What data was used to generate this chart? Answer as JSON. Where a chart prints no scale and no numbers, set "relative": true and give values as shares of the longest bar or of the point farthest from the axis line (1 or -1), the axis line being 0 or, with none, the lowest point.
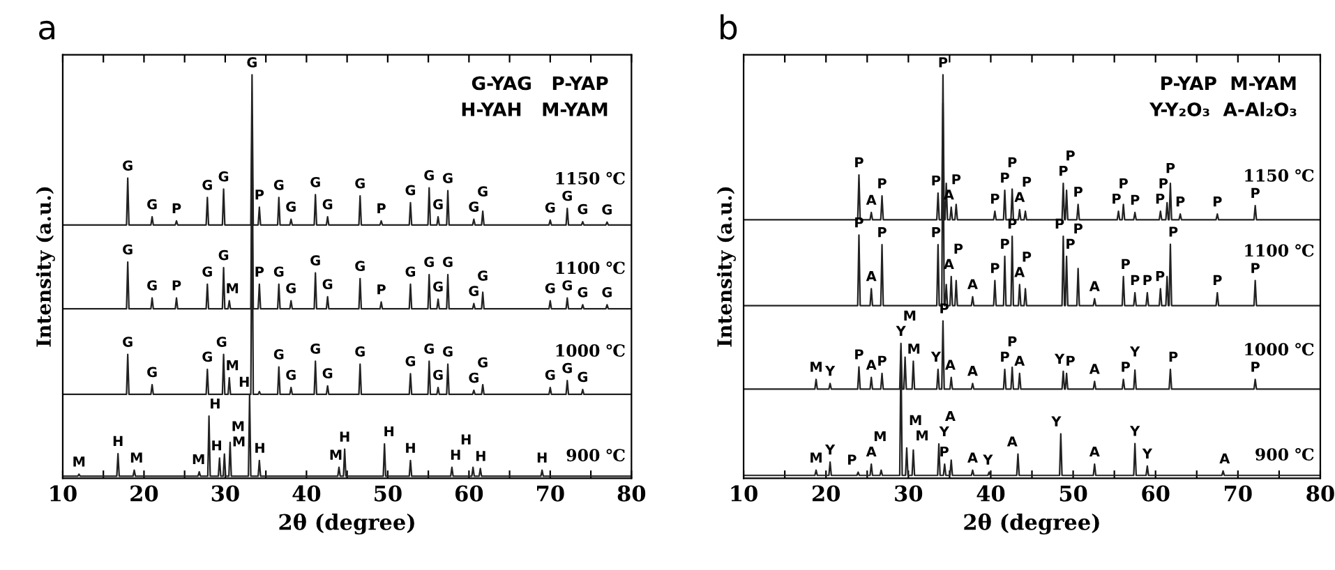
{
  "chart_data": [
    {
      "type": "line",
      "title": "a",
      "xlabel": "2θ (degree)",
      "ylabel": "Intensity (a.u.)",
      "relative": true,
      "xlim": [
        10,
        80
      ],
      "xticks": [
        10,
        {
          "value": 15,
          "label": null
        },
        20,
        {
          "value": 25,
          "label": null
        },
        30,
        {
          "value": 35,
          "label": null
        },
        40,
        {
          "value": 45,
          "label": null
        },
        50,
        {
          "value": 55,
          "label": null
        },
        60,
        {
          "value": 65,
          "label": null
        },
        70,
        {
          "value": 75,
          "label": null
        },
        80
      ],
      "x": [
        10,
        17.85,
        18,
        18.15,
        20.85,
        21,
        21.15,
        23.85,
        24,
        24.15,
        27.65,
        27.8,
        27.95,
        29.65,
        29.8,
        29.95,
        30.35,
        30.5,
        30.65,
        33.15,
        33.3,
        33.45,
        34.05,
        34.2,
        34.35,
        36.45,
        36.6,
        36.75,
        37.95,
        38.1,
        38.25,
        40.95,
        41.1,
        41.25,
        42.45,
        42.6,
        42.75,
        46.45,
        46.6,
        46.75,
        49.05,
        49.2,
        49.35,
        52.65,
        52.8,
        52.95,
        54.95,
        55.1,
        55.25,
        56.05,
        56.2,
        56.35,
        57.25,
        57.4,
        57.55,
        60.45,
        60.6,
        60.75,
        61.55,
        61.7,
        61.85,
        69.85,
        70,
        70.15,
        71.95,
        72.1,
        72.25,
        73.85,
        74,
        74.15,
        76.85,
        77,
        77.15,
        80
      ],
      "series": [
        {
          "name": "1150 ℃",
          "color": "#222222",
          "values": [
            0.628,
            0.628,
            0.744,
            0.628,
            0.628,
            0.648,
            0.628,
            0.628,
            0.638,
            0.628,
            0.628,
            0.696,
            0.628,
            0.628,
            0.717,
            0.628,
            0.628,
            0.628,
            0.628,
            0.628,
            1,
            0.628,
            0.628,
            0.672,
            0.628,
            0.628,
            0.696,
            0.628,
            0.628,
            0.642,
            0.628,
            0.628,
            0.703,
            0.628,
            0.628,
            0.648,
            0.628,
            0.628,
            0.7,
            0.628,
            0.628,
            0.638,
            0.628,
            0.628,
            0.683,
            0.628,
            0.628,
            0.72,
            0.628,
            0.628,
            0.648,
            0.628,
            0.628,
            0.713,
            0.628,
            0.628,
            0.642,
            0.628,
            0.628,
            0.662,
            0.628,
            0.628,
            0.64,
            0.628,
            0.628,
            0.669,
            0.628,
            0.628,
            0.636,
            0.628,
            0.628,
            0.635,
            0.628,
            0.628
          ]
        },
        {
          "name": "1100 ℃",
          "color": "#222222",
          "values": [
            0.42,
            0.42,
            0.536,
            0.42,
            0.42,
            0.447,
            0.42,
            0.42,
            0.447,
            0.42,
            0.42,
            0.481,
            0.42,
            0.42,
            0.522,
            0.42,
            0.42,
            0.44,
            0.42,
            0.42,
            0.9,
            0.42,
            0.42,
            0.481,
            0.42,
            0.42,
            0.481,
            0.42,
            0.42,
            0.44,
            0.42,
            0.42,
            0.509,
            0.42,
            0.42,
            0.45,
            0.42,
            0.42,
            0.495,
            0.42,
            0.42,
            0.437,
            0.42,
            0.42,
            0.481,
            0.42,
            0.42,
            0.505,
            0.42,
            0.42,
            0.444,
            0.42,
            0.42,
            0.505,
            0.42,
            0.42,
            0.433,
            0.42,
            0.42,
            0.461,
            0.42,
            0.42,
            0.44,
            0.42,
            0.42,
            0.447,
            0.42,
            0.42,
            0.43,
            0.42,
            0.42,
            0.43,
            0.42,
            0.42
          ]
        },
        {
          "name": "1000 ℃",
          "color": "#222222",
          "values": [
            0.208,
            0.208,
            0.307,
            0.208,
            0.208,
            0.232,
            0.208,
            0.208,
            0.208,
            0.208,
            0.208,
            0.27,
            0.208,
            0.208,
            0.307,
            0.208,
            0.208,
            0.249,
            0.208,
            0.208,
            0.76,
            0.208,
            0.208,
            0.215,
            0.208,
            0.208,
            0.276,
            0.208,
            0.208,
            0.225,
            0.208,
            0.208,
            0.29,
            0.208,
            0.208,
            0.229,
            0.208,
            0.208,
            0.283,
            0.208,
            0.208,
            0.208,
            0.208,
            0.208,
            0.259,
            0.208,
            0.208,
            0.29,
            0.208,
            0.208,
            0.225,
            0.208,
            0.208,
            0.283,
            0.208,
            0.208,
            0.218,
            0.208,
            0.208,
            0.232,
            0.208,
            0.208,
            0.225,
            0.208,
            0.208,
            0.242,
            0.208,
            0.208,
            0.22,
            0.208,
            0.208,
            0.208,
            0.208,
            0.208
          ]
        },
        {
          "name": "900 ℃",
          "color": "#222222",
          "x": [
            10,
            11.85,
            12,
            12.15,
            16.65,
            16.8,
            16.95,
            18.65,
            18.8,
            18.95,
            26.65,
            26.8,
            26.95,
            27.85,
            28,
            28.15,
            29.15,
            29.3,
            29.45,
            29.75,
            29.9,
            30.05,
            30.45,
            30.6,
            30.75,
            32.85,
            33,
            33.15,
            34.05,
            34.2,
            34.35,
            43.85,
            44,
            44.15,
            44.55,
            44.7,
            44.85,
            49.45,
            49.6,
            49.75,
            52.65,
            52.8,
            52.95,
            57.75,
            57.9,
            58.05,
            60.35,
            60.5,
            60.65,
            61.25,
            61.4,
            61.55,
            68.85,
            69,
            69.15,
            80
          ],
          "values": [
            0.005,
            0.005,
            0.01,
            0.005,
            0.005,
            0.061,
            0.005,
            0.005,
            0.02,
            0.005,
            0.005,
            0.016,
            0.005,
            0.005,
            0.154,
            0.005,
            0.005,
            0.05,
            0.005,
            0.005,
            0.06,
            0.005,
            0.005,
            0.089,
            0.005,
            0.005,
            0.208,
            0.005,
            0.005,
            0.044,
            0.005,
            0.005,
            0.027,
            0.005,
            0.005,
            0.072,
            0.005,
            0.005,
            0.085,
            0.005,
            0.005,
            0.044,
            0.005,
            0.005,
            0.027,
            0.005,
            0.005,
            0.027,
            0.005,
            0.005,
            0.024,
            0.005,
            0.005,
            0.02,
            0.005,
            0.005
          ]
        }
      ],
      "annotations": [
        "G-YAG   P-YAP\nH-YAH   M-YAM",
        {
          "text": "G",
          "x": 18,
          "y": 0.744
        },
        {
          "text": "G",
          "x": 21,
          "y": 0.648
        },
        {
          "text": "P",
          "x": 24,
          "y": 0.638
        },
        {
          "text": "G",
          "x": 27.8,
          "y": 0.696
        },
        {
          "text": "G",
          "x": 29.8,
          "y": 0.717
        },
        {
          "text": "G",
          "x": 33.3,
          "y": 1
        },
        {
          "text": "P",
          "x": 34.2,
          "y": 0.672
        },
        {
          "text": "G",
          "x": 36.6,
          "y": 0.696
        },
        {
          "text": "G",
          "x": 38.1,
          "y": 0.642
        },
        {
          "text": "G",
          "x": 41.1,
          "y": 0.703
        },
        {
          "text": "G",
          "x": 42.6,
          "y": 0.648
        },
        {
          "text": "G",
          "x": 46.6,
          "y": 0.7
        },
        {
          "text": "P",
          "x": 49.2,
          "y": 0.638
        },
        {
          "text": "G",
          "x": 52.8,
          "y": 0.683
        },
        {
          "text": "G",
          "x": 55.1,
          "y": 0.72
        },
        {
          "text": "G",
          "x": 56.2,
          "y": 0.648
        },
        {
          "text": "G",
          "x": 57.4,
          "y": 0.713
        },
        {
          "text": "G",
          "x": 60.6,
          "y": 0.642
        },
        {
          "text": "G",
          "x": 61.7,
          "y": 0.662
        },
        {
          "text": "G",
          "x": 70,
          "y": 0.64
        },
        {
          "text": "G",
          "x": 72.1,
          "y": 0.669
        },
        {
          "text": "G",
          "x": 74,
          "y": 0.636
        },
        {
          "text": "G",
          "x": 77,
          "y": 0.635
        },
        {
          "text": "G",
          "x": 18,
          "y": 0.536
        },
        {
          "text": "G",
          "x": 21,
          "y": 0.447
        },
        {
          "text": "P",
          "x": 24,
          "y": 0.447
        },
        {
          "text": "G",
          "x": 27.8,
          "y": 0.481
        },
        {
          "text": "G",
          "x": 29.8,
          "y": 0.522
        },
        {
          "text": "M",
          "x": 30.5,
          "y": 0.44
        },
        {
          "text": "P",
          "x": 34.2,
          "y": 0.481
        },
        {
          "text": "G",
          "x": 36.6,
          "y": 0.481
        },
        {
          "text": "G",
          "x": 38.1,
          "y": 0.44
        },
        {
          "text": "G",
          "x": 41.1,
          "y": 0.509
        },
        {
          "text": "G",
          "x": 42.6,
          "y": 0.45
        },
        {
          "text": "G",
          "x": 46.6,
          "y": 0.495
        },
        {
          "text": "P",
          "x": 49.2,
          "y": 0.437
        },
        {
          "text": "G",
          "x": 52.8,
          "y": 0.481
        },
        {
          "text": "G",
          "x": 55.1,
          "y": 0.505
        },
        {
          "text": "G",
          "x": 56.2,
          "y": 0.444
        },
        {
          "text": "G",
          "x": 57.4,
          "y": 0.505
        },
        {
          "text": "G",
          "x": 60.6,
          "y": 0.433
        },
        {
          "text": "G",
          "x": 61.7,
          "y": 0.461
        },
        {
          "text": "G",
          "x": 70,
          "y": 0.44
        },
        {
          "text": "G",
          "x": 72.1,
          "y": 0.447
        },
        {
          "text": "G",
          "x": 74,
          "y": 0.43
        },
        {
          "text": "G",
          "x": 77,
          "y": 0.43
        },
        {
          "text": "G",
          "x": 18,
          "y": 0.307
        },
        {
          "text": "G",
          "x": 21,
          "y": 0.232
        },
        {
          "text": "G",
          "x": 27.8,
          "y": 0.27
        },
        {
          "text": "G",
          "x": 29.8,
          "y": 0.307
        },
        {
          "text": "M",
          "x": 30.5,
          "y": 0.249
        },
        {
          "text": "G",
          "x": 36.6,
          "y": 0.276
        },
        {
          "text": "G",
          "x": 38.1,
          "y": 0.225
        },
        {
          "text": "G",
          "x": 41.1,
          "y": 0.29
        },
        {
          "text": "G",
          "x": 42.6,
          "y": 0.229
        },
        {
          "text": "G",
          "x": 46.6,
          "y": 0.283
        },
        {
          "text": "G",
          "x": 52.8,
          "y": 0.259
        },
        {
          "text": "G",
          "x": 55.1,
          "y": 0.29
        },
        {
          "text": "G",
          "x": 56.2,
          "y": 0.225
        },
        {
          "text": "G",
          "x": 57.4,
          "y": 0.283
        },
        {
          "text": "G",
          "x": 60.6,
          "y": 0.218
        },
        {
          "text": "G",
          "x": 61.7,
          "y": 0.232
        },
        {
          "text": "G",
          "x": 70,
          "y": 0.225
        },
        {
          "text": "G",
          "x": 72.1,
          "y": 0.242
        },
        {
          "text": "G",
          "x": 74,
          "y": 0.22
        },
        {
          "text": "M",
          "x": 12,
          "y": 0.01
        },
        {
          "text": "H",
          "x": 16.8,
          "y": 0.061
        },
        {
          "text": "M",
          "x": 18.8,
          "y": 0.02
        },
        {
          "text": "M",
          "x": 26.8,
          "y": 0.016
        },
        {
          "text": "H",
          "x": 28,
          "y": 0.154
        },
        {
          "text": "H",
          "x": 29.3,
          "y": 0.05
        },
        {
          "text": "M",
          "x": 29.9,
          "y": 0.06
        },
        {
          "text": "M",
          "x": 30.6,
          "y": 0.089
        },
        {
          "text": "H",
          "x": 33,
          "y": 0.208
        },
        {
          "text": "H",
          "x": 34.2,
          "y": 0.044
        },
        {
          "text": "M",
          "x": 44,
          "y": 0.027
        },
        {
          "text": "H",
          "x": 44.7,
          "y": 0.072
        },
        {
          "text": "H",
          "x": 49.6,
          "y": 0.085
        },
        {
          "text": "H",
          "x": 52.8,
          "y": 0.044
        },
        {
          "text": "H",
          "x": 57.9,
          "y": 0.027
        },
        {
          "text": "H",
          "x": 60.5,
          "y": 0.027
        },
        {
          "text": "H",
          "x": 61.4,
          "y": 0.024
        },
        {
          "text": "H",
          "x": 69,
          "y": 0.02
        }
      ]
    },
    {
      "type": "line",
      "title": "b",
      "xlabel": "2θ (degree)",
      "ylabel": "Intensity (a.u.)",
      "relative": true,
      "xlim": [
        10,
        80
      ],
      "xticks": [
        10,
        {
          "value": 15,
          "label": null
        },
        20,
        {
          "value": 25,
          "label": null
        },
        30,
        {
          "value": 35,
          "label": null
        },
        40,
        {
          "value": 45,
          "label": null
        },
        50,
        {
          "value": 55,
          "label": null
        },
        60,
        {
          "value": 65,
          "label": null
        },
        70,
        {
          "value": 75,
          "label": null
        },
        80
      ],
      "x": [
        10,
        18.65,
        18.8,
        18.95,
        20.35,
        20.5,
        20.65,
        23.85,
        24,
        24.15,
        25.35,
        25.5,
        25.65,
        26.65,
        26.8,
        26.95,
        28.95,
        29.1,
        29.25,
        29.45,
        29.6,
        29.75,
        30.45,
        30.6,
        30.75,
        33.45,
        33.6,
        33.75,
        34.05,
        34.2,
        34.35,
        34.45,
        34.6,
        34.75,
        35.05,
        35.2,
        35.35,
        35.65,
        35.8,
        35.95,
        37.65,
        37.8,
        37.95,
        40.35,
        40.5,
        40.65,
        41.55,
        41.7,
        41.85,
        42.45,
        42.6,
        42.75,
        43.35,
        43.5,
        43.65,
        44.05,
        44.2,
        44.35,
        48.65,
        48.8,
        48.95,
        49.05,
        49.2,
        49.35,
        50.45,
        50.6,
        50.75,
        52.45,
        52.6,
        52.75,
        55.35,
        55.5,
        55.65,
        55.95,
        56.1,
        56.25,
        57.35,
        57.5,
        57.65,
        58.85,
        59,
        59.15,
        60.45,
        60.6,
        60.75,
        61.25,
        61.4,
        61.55,
        61.65,
        61.8,
        61.95,
        62.85,
        63,
        63.15,
        67.35,
        67.5,
        67.65,
        71.95,
        72.1,
        72.25,
        80
      ],
      "series": [
        {
          "name": "1150 ℃",
          "color": "#222222",
          "values": [
            0.641,
            0.641,
            0.641,
            0.641,
            0.641,
            0.641,
            0.641,
            0.641,
            0.752,
            0.641,
            0.641,
            0.659,
            0.641,
            0.641,
            0.7,
            0.641,
            0.641,
            0.641,
            0.641,
            0.641,
            0.641,
            0.641,
            0.641,
            0.641,
            0.641,
            0.641,
            0.707,
            0.641,
            0.641,
            1,
            0.641,
            0.641,
            0.731,
            0.641,
            0.641,
            0.672,
            0.641,
            0.641,
            0.679,
            0.641,
            0.641,
            0.641,
            0.641,
            0.641,
            0.662,
            0.641,
            0.641,
            0.714,
            0.641,
            0.641,
            0.717,
            0.641,
            0.641,
            0.666,
            0.641,
            0.641,
            0.662,
            0.641,
            0.641,
            0.731,
            0.641,
            0.641,
            0.714,
            0.641,
            0.641,
            0.679,
            0.641,
            0.641,
            0.641,
            0.641,
            0.641,
            0.662,
            0.641,
            0.641,
            0.679,
            0.641,
            0.641,
            0.659,
            0.641,
            0.641,
            0.641,
            0.641,
            0.641,
            0.662,
            0.641,
            0.641,
            0.683,
            0.641,
            0.641,
            0.731,
            0.641,
            0.641,
            0.655,
            0.641,
            0.641,
            0.655,
            0.641,
            0.641,
            0.676,
            0.641,
            0.641
          ]
        },
        {
          "name": "1100 ℃",
          "color": "#222222",
          "values": [
            0.428,
            0.428,
            0.428,
            0.428,
            0.428,
            0.428,
            0.428,
            0.428,
            0.603,
            0.428,
            0.428,
            0.47,
            0.428,
            0.428,
            0.579,
            0.428,
            0.428,
            0.428,
            0.428,
            0.428,
            0.428,
            0.428,
            0.428,
            0.428,
            0.428,
            0.428,
            0.579,
            0.428,
            0.428,
            0.93,
            0.428,
            0.428,
            0.48,
            0.428,
            0.428,
            0.5,
            0.428,
            0.428,
            0.49,
            0.428,
            0.428,
            0.45,
            0.428,
            0.428,
            0.49,
            0.428,
            0.428,
            0.55,
            0.428,
            0.428,
            0.6,
            0.428,
            0.428,
            0.48,
            0.428,
            0.428,
            0.47,
            0.428,
            0.428,
            0.6,
            0.428,
            0.428,
            0.55,
            0.428,
            0.428,
            0.52,
            0.428,
            0.428,
            0.445,
            0.428,
            0.428,
            0.428,
            0.428,
            0.428,
            0.5,
            0.428,
            0.428,
            0.46,
            0.428,
            0.428,
            0.46,
            0.428,
            0.428,
            0.47,
            0.428,
            0.428,
            0.5,
            0.428,
            0.428,
            0.58,
            0.428,
            0.428,
            0.428,
            0.428,
            0.428,
            0.46,
            0.428,
            0.428,
            0.49,
            0.428,
            0.428
          ]
        },
        {
          "name": "1000 ℃",
          "color": "#222222",
          "values": [
            0.221,
            0.221,
            0.245,
            0.221,
            0.221,
            0.235,
            0.221,
            0.221,
            0.276,
            0.221,
            0.221,
            0.25,
            0.221,
            0.221,
            0.26,
            0.221,
            0.221,
            0.334,
            0.221,
            0.221,
            0.3,
            0.221,
            0.221,
            0.29,
            0.221,
            0.221,
            0.27,
            0.221,
            0.221,
            0.39,
            0.221,
            0.221,
            0.221,
            0.221,
            0.221,
            0.25,
            0.221,
            0.221,
            0.221,
            0.221,
            0.221,
            0.235,
            0.221,
            0.221,
            0.221,
            0.221,
            0.221,
            0.27,
            0.221,
            0.221,
            0.275,
            0.221,
            0.221,
            0.26,
            0.221,
            0.221,
            0.221,
            0.221,
            0.221,
            0.265,
            0.221,
            0.221,
            0.26,
            0.221,
            0.221,
            0.221,
            0.221,
            0.221,
            0.24,
            0.221,
            0.221,
            0.221,
            0.221,
            0.221,
            0.245,
            0.221,
            0.221,
            0.268,
            0.221,
            0.221,
            0.221,
            0.221,
            0.221,
            0.221,
            0.221,
            0.221,
            0.221,
            0.221,
            0.221,
            0.27,
            0.221,
            0.221,
            0.221,
            0.221,
            0.221,
            0.221,
            0.221,
            0.221,
            0.245,
            0.221,
            0.221
          ]
        },
        {
          "name": "900 ℃",
          "color": "#222222",
          "x": [
            10,
            18.65,
            18.8,
            18.95,
            20.35,
            20.5,
            20.65,
            23.75,
            23.9,
            24.05,
            25.35,
            25.5,
            25.65,
            26.55,
            26.7,
            26.85,
            28.95,
            29.1,
            29.25,
            29.65,
            29.8,
            29.95,
            30.45,
            30.6,
            30.75,
            33.55,
            33.7,
            33.85,
            34.25,
            34.4,
            34.55,
            35.05,
            35.2,
            35.35,
            37.65,
            37.8,
            37.95,
            39.65,
            39.8,
            39.95,
            43.15,
            43.3,
            43.45,
            48.35,
            48.5,
            48.65,
            52.45,
            52.6,
            52.75,
            57.35,
            57.5,
            57.65,
            58.85,
            59,
            59.15,
            68.05,
            68.2,
            68.35,
            80
          ],
          "values": [
            0.007,
            0.007,
            0.02,
            0.007,
            0.007,
            0.04,
            0.007,
            0.007,
            0.015,
            0.007,
            0.007,
            0.035,
            0.007,
            0.007,
            0.02,
            0.007,
            0.007,
            0.317,
            0.007,
            0.007,
            0.075,
            0.007,
            0.007,
            0.07,
            0.007,
            0.007,
            0.085,
            0.007,
            0.007,
            0.035,
            0.007,
            0.007,
            0.045,
            0.007,
            0.007,
            0.02,
            0.007,
            0.007,
            0.015,
            0.007,
            0.007,
            0.06,
            0.007,
            0.007,
            0.11,
            0.007,
            0.007,
            0.035,
            0.007,
            0.007,
            0.086,
            0.007,
            0.007,
            0.03,
            0.007,
            0.007,
            0.018,
            0.007,
            0.007
          ]
        }
      ],
      "annotations": [
        "P-YAP  M-YAM\nY-Y₂O₃  A-Al₂O₃",
        {
          "text": "P",
          "x": 24,
          "y": 0.752
        },
        {
          "text": "A",
          "x": 25.5,
          "y": 0.659
        },
        {
          "text": "P",
          "x": 26.8,
          "y": 0.7
        },
        {
          "text": "P",
          "x": 33.6,
          "y": 0.707
        },
        {
          "text": "P",
          "x": 34.2,
          "y": 1
        },
        {
          "text": "A",
          "x": 35.2,
          "y": 0.672
        },
        {
          "text": "P",
          "x": 35.8,
          "y": 0.679
        },
        {
          "text": "P",
          "x": 40.5,
          "y": 0.662
        },
        {
          "text": "P",
          "x": 41.7,
          "y": 0.714
        },
        {
          "text": "P",
          "x": 42.6,
          "y": 0.717
        },
        {
          "text": "A",
          "x": 43.5,
          "y": 0.666
        },
        {
          "text": "P",
          "x": 44.2,
          "y": 0.662
        },
        {
          "text": "P",
          "x": 48.8,
          "y": 0.731
        },
        {
          "text": "P",
          "x": 49.2,
          "y": 0.714
        },
        {
          "text": "P",
          "x": 50.6,
          "y": 0.679
        },
        {
          "text": "P",
          "x": 55.5,
          "y": 0.662
        },
        {
          "text": "P",
          "x": 56.1,
          "y": 0.679
        },
        {
          "text": "P",
          "x": 57.5,
          "y": 0.659
        },
        {
          "text": "P",
          "x": 60.6,
          "y": 0.662
        },
        {
          "text": "P",
          "x": 61.4,
          "y": 0.683
        },
        {
          "text": "P",
          "x": 61.8,
          "y": 0.731
        },
        {
          "text": "P",
          "x": 63,
          "y": 0.655
        },
        {
          "text": "P",
          "x": 67.5,
          "y": 0.655
        },
        {
          "text": "P",
          "x": 72.1,
          "y": 0.676
        },
        {
          "text": "P",
          "x": 24,
          "y": 0.603
        },
        {
          "text": "A",
          "x": 25.5,
          "y": 0.47
        },
        {
          "text": "P",
          "x": 26.8,
          "y": 0.579
        },
        {
          "text": "P",
          "x": 33.6,
          "y": 0.579
        },
        {
          "text": "A",
          "x": 35.2,
          "y": 0.5
        },
        {
          "text": "P",
          "x": 35.8,
          "y": 0.49
        },
        {
          "text": "A",
          "x": 37.8,
          "y": 0.45
        },
        {
          "text": "P",
          "x": 40.5,
          "y": 0.49
        },
        {
          "text": "P",
          "x": 41.7,
          "y": 0.55
        },
        {
          "text": "P",
          "x": 42.6,
          "y": 0.6
        },
        {
          "text": "A",
          "x": 43.5,
          "y": 0.48
        },
        {
          "text": "P",
          "x": 44.2,
          "y": 0.47
        },
        {
          "text": "P",
          "x": 48.8,
          "y": 0.6
        },
        {
          "text": "P",
          "x": 49.2,
          "y": 0.55
        },
        {
          "text": "P",
          "x": 50.6,
          "y": 0.52
        },
        {
          "text": "A",
          "x": 52.6,
          "y": 0.445
        },
        {
          "text": "P",
          "x": 56.1,
          "y": 0.5
        },
        {
          "text": "P",
          "x": 57.5,
          "y": 0.46
        },
        {
          "text": "P",
          "x": 59,
          "y": 0.46
        },
        {
          "text": "P",
          "x": 60.6,
          "y": 0.47
        },
        {
          "text": "P",
          "x": 61.8,
          "y": 0.58
        },
        {
          "text": "P",
          "x": 67.5,
          "y": 0.46
        },
        {
          "text": "P",
          "x": 72.1,
          "y": 0.49
        },
        {
          "text": "M",
          "x": 18.8,
          "y": 0.245
        },
        {
          "text": "Y",
          "x": 20.5,
          "y": 0.235
        },
        {
          "text": "P",
          "x": 24,
          "y": 0.276
        },
        {
          "text": "A",
          "x": 25.5,
          "y": 0.25
        },
        {
          "text": "P",
          "x": 26.8,
          "y": 0.26
        },
        {
          "text": "Y",
          "x": 29.1,
          "y": 0.334
        },
        {
          "text": "M",
          "x": 29.6,
          "y": 0.3
        },
        {
          "text": "M",
          "x": 30.6,
          "y": 0.29
        },
        {
          "text": "Y",
          "x": 33.6,
          "y": 0.27
        },
        {
          "text": "P",
          "x": 34.2,
          "y": 0.39
        },
        {
          "text": "A",
          "x": 35.2,
          "y": 0.25
        },
        {
          "text": "A",
          "x": 37.8,
          "y": 0.235
        },
        {
          "text": "P",
          "x": 41.7,
          "y": 0.27
        },
        {
          "text": "P",
          "x": 42.6,
          "y": 0.275
        },
        {
          "text": "A",
          "x": 43.5,
          "y": 0.26
        },
        {
          "text": "Y",
          "x": 48.8,
          "y": 0.265
        },
        {
          "text": "P",
          "x": 49.2,
          "y": 0.26
        },
        {
          "text": "A",
          "x": 52.6,
          "y": 0.24
        },
        {
          "text": "P",
          "x": 56.1,
          "y": 0.245
        },
        {
          "text": "Y",
          "x": 57.5,
          "y": 0.268
        },
        {
          "text": "P",
          "x": 61.8,
          "y": 0.27
        },
        {
          "text": "P",
          "x": 72.1,
          "y": 0.245
        },
        {
          "text": "M",
          "x": 18.8,
          "y": 0.02
        },
        {
          "text": "Y",
          "x": 20.5,
          "y": 0.04
        },
        {
          "text": "P",
          "x": 23.9,
          "y": 0.015
        },
        {
          "text": "A",
          "x": 25.5,
          "y": 0.035
        },
        {
          "text": "M",
          "x": 26.7,
          "y": 0.02
        },
        {
          "text": "M",
          "x": 29.8,
          "y": 0.075
        },
        {
          "text": "M",
          "x": 30.6,
          "y": 0.07
        },
        {
          "text": "Y",
          "x": 33.7,
          "y": 0.085
        },
        {
          "text": "P",
          "x": 34.4,
          "y": 0.035
        },
        {
          "text": "A",
          "x": 35.2,
          "y": 0.045
        },
        {
          "text": "A",
          "x": 37.8,
          "y": 0.02
        },
        {
          "text": "Y",
          "x": 39.8,
          "y": 0.015
        },
        {
          "text": "A",
          "x": 43.3,
          "y": 0.06
        },
        {
          "text": "Y",
          "x": 48.5,
          "y": 0.11
        },
        {
          "text": "A",
          "x": 52.6,
          "y": 0.035
        },
        {
          "text": "Y",
          "x": 57.5,
          "y": 0.086
        },
        {
          "text": "Y",
          "x": 59,
          "y": 0.03
        },
        {
          "text": "A",
          "x": 68.2,
          "y": 0.018
        }
      ]
    }
  ]
}
